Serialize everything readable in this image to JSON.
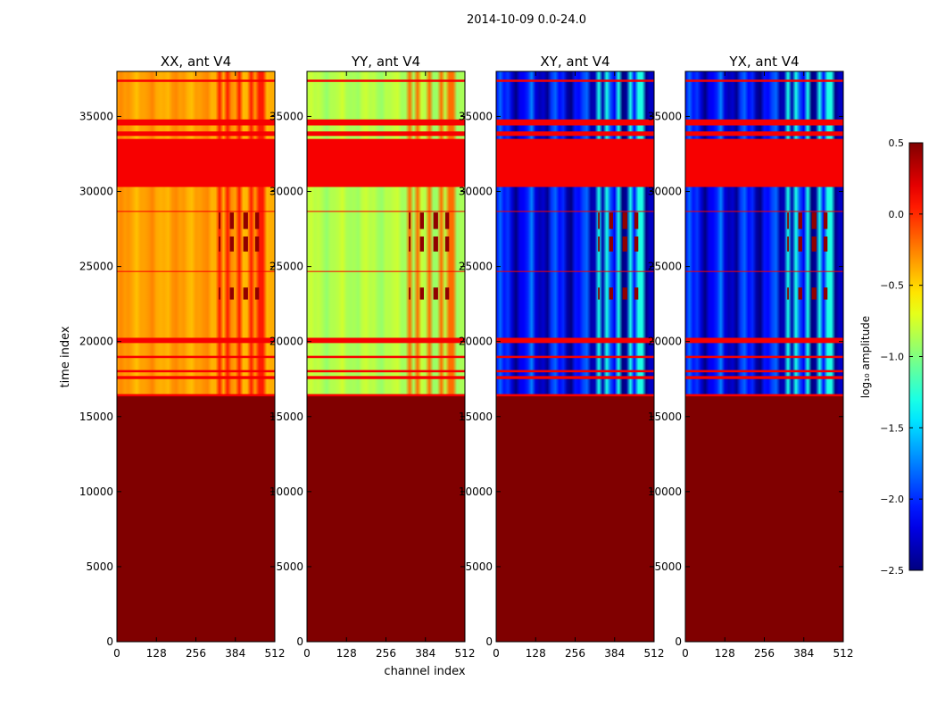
{
  "chart_data": {
    "type": "heatmap",
    "suptitle": "2014-10-09 0.0-24.0",
    "xlabel": "channel index",
    "ylabel": "time index",
    "xlim": [
      0,
      512
    ],
    "ylim": [
      0,
      38000
    ],
    "xticks": [
      0,
      128,
      256,
      384,
      512
    ],
    "yticks": [
      0,
      5000,
      10000,
      15000,
      20000,
      25000,
      30000,
      35000
    ],
    "colorbar": {
      "label": "log₁₀ amplitude",
      "range": [
        -2.5,
        0.5
      ],
      "ticks": [
        0.5,
        0.0,
        -0.5,
        -1.0,
        -1.5,
        -2.0,
        -2.5
      ],
      "tick_labels": [
        "0.5",
        "0.0",
        "−0.5",
        "−1.0",
        "−1.5",
        "−2.0",
        "−2.5"
      ],
      "colormap": "jet"
    },
    "flagged_value": 0.15,
    "no_data_below_time": 16400,
    "flagged_time_bands": [
      [
        16350,
        16500
      ],
      [
        17500,
        17700
      ],
      [
        17950,
        18100
      ],
      [
        18900,
        19050
      ],
      [
        19900,
        20250
      ],
      [
        24650,
        24700
      ],
      [
        28650,
        28700
      ],
      [
        30300,
        33500
      ],
      [
        33700,
        34000
      ],
      [
        34400,
        34800
      ],
      [
        37300,
        37450
      ]
    ],
    "panels": [
      {
        "title": "XX, ant V4",
        "base_level": -0.35,
        "stripe_level": 0.05,
        "peak_level": 0.45
      },
      {
        "title": "YY, ant V4",
        "base_level": -0.85,
        "stripe_level": -0.2,
        "peak_level": 0.45
      },
      {
        "title": "XY, ant V4",
        "base_level": -2.15,
        "stripe_level": -1.3,
        "peak_level": 0.45
      },
      {
        "title": "YX, ant V4",
        "base_level": -2.15,
        "stripe_level": -1.3,
        "peak_level": 0.45
      }
    ]
  }
}
